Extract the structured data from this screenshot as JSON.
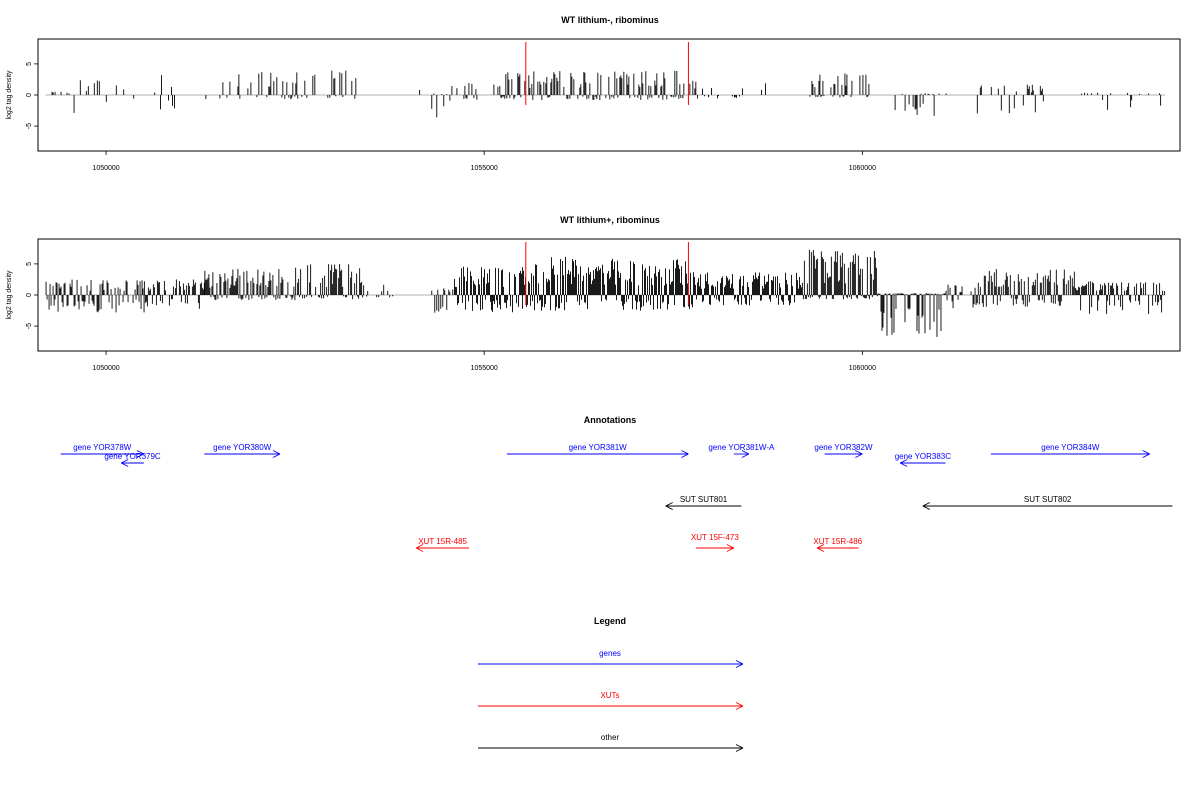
{
  "chart_data": [
    {
      "type": "bar",
      "title": "WT lithium-, ribominus",
      "ylabel": "log2 tag density",
      "xlim": [
        1049100,
        1064200
      ],
      "ylim": [
        -9,
        9
      ],
      "x_ticks": [
        1050000,
        1055000,
        1060000
      ],
      "y_ticks": [
        -5,
        0,
        5
      ],
      "mark_lines": [
        1055550,
        1057700
      ],
      "mark_color": "#ff0000",
      "bar_color": "#000000",
      "grid": false,
      "tracks": [
        {
          "x_range": [
            1049200,
            1049600
          ],
          "density": 0.25,
          "pos_mean": 0.5,
          "neg_mean": -2.4
        },
        {
          "x_range": [
            1049600,
            1050200
          ],
          "density": 0.2,
          "pos_mean": 1.8,
          "neg_mean": -2.2
        },
        {
          "x_range": [
            1050200,
            1050700
          ],
          "density": 0.12,
          "pos_mean": 0.8,
          "neg_mean": -1.5
        },
        {
          "x_range": [
            1050700,
            1050900
          ],
          "density": 0.25,
          "pos_mean": 2.4,
          "neg_mean": -1.8
        },
        {
          "x_range": [
            1051300,
            1052000
          ],
          "density": 0.2,
          "pos_mean": 2.6,
          "neg_mean": -0.5
        },
        {
          "x_range": [
            1052000,
            1053300
          ],
          "density": 0.3,
          "pos_mean": 2.8,
          "neg_mean": -0.5
        },
        {
          "x_range": [
            1054100,
            1054200
          ],
          "density": 0.3,
          "pos_mean": 1.2,
          "neg_mean": 0
        },
        {
          "x_range": [
            1054300,
            1054500
          ],
          "density": 0.25,
          "pos_mean": 0.3,
          "neg_mean": -3.0
        },
        {
          "x_range": [
            1054500,
            1055200
          ],
          "density": 0.3,
          "pos_mean": 1.4,
          "neg_mean": -0.8
        },
        {
          "x_range": [
            1055200,
            1057800
          ],
          "density": 0.55,
          "pos_mean": 2.8,
          "neg_mean": -0.6
        },
        {
          "x_range": [
            1057800,
            1058800
          ],
          "density": 0.25,
          "pos_mean": 1.8,
          "neg_mean": -0.4
        },
        {
          "x_range": [
            1059300,
            1060100
          ],
          "density": 0.45,
          "pos_mean": 2.7,
          "neg_mean": -0.3
        },
        {
          "x_range": [
            1060400,
            1061200
          ],
          "density": 0.35,
          "pos_mean": 0.2,
          "neg_mean": -2.5
        },
        {
          "x_range": [
            1061500,
            1062400
          ],
          "density": 0.3,
          "pos_mean": 1.2,
          "neg_mean": -2.4
        },
        {
          "x_range": [
            1062800,
            1064000
          ],
          "density": 0.14,
          "pos_mean": 0.3,
          "neg_mean": -1.8
        }
      ]
    },
    {
      "type": "bar",
      "title": "WT lithium+, ribominus",
      "ylabel": "log2 tag density",
      "xlim": [
        1049100,
        1064200
      ],
      "ylim": [
        -9,
        9
      ],
      "x_ticks": [
        1050000,
        1055000,
        1060000
      ],
      "y_ticks": [
        -5,
        0,
        5
      ],
      "mark_lines": [
        1055550,
        1057700
      ],
      "mark_color": "#ff0000",
      "bar_color": "#000000",
      "grid": false,
      "tracks": [
        {
          "x_range": [
            1049200,
            1050500
          ],
          "density": 0.75,
          "pos_mean": 1.8,
          "neg_mean": -2.0
        },
        {
          "x_range": [
            1050500,
            1051300
          ],
          "density": 0.75,
          "pos_mean": 1.9,
          "neg_mean": -1.6
        },
        {
          "x_range": [
            1051300,
            1052500
          ],
          "density": 0.8,
          "pos_mean": 3.0,
          "neg_mean": -0.6
        },
        {
          "x_range": [
            1052500,
            1053400
          ],
          "density": 0.7,
          "pos_mean": 3.6,
          "neg_mean": -0.5
        },
        {
          "x_range": [
            1053400,
            1053800
          ],
          "density": 0.3,
          "pos_mean": 1.6,
          "neg_mean": -0.3
        },
        {
          "x_range": [
            1054300,
            1054600
          ],
          "density": 0.4,
          "pos_mean": 0.8,
          "neg_mean": -2.4
        },
        {
          "x_range": [
            1054600,
            1055500
          ],
          "density": 0.9,
          "pos_mean": 3.4,
          "neg_mean": -2.0
        },
        {
          "x_range": [
            1055500,
            1057800
          ],
          "density": 1.0,
          "pos_mean": 4.4,
          "neg_mean": -1.8
        },
        {
          "x_range": [
            1057800,
            1059200
          ],
          "density": 0.9,
          "pos_mean": 2.6,
          "neg_mean": -1.2
        },
        {
          "x_range": [
            1059200,
            1060200
          ],
          "density": 1.0,
          "pos_mean": 5.2,
          "neg_mean": -0.5
        },
        {
          "x_range": [
            1060200,
            1061100
          ],
          "density": 1.0,
          "pos_mean": 0.2,
          "neg_mean": -5.0
        },
        {
          "x_range": [
            1061100,
            1061500
          ],
          "density": 0.5,
          "pos_mean": 1.2,
          "neg_mean": -1.8
        },
        {
          "x_range": [
            1061500,
            1062800
          ],
          "density": 0.85,
          "pos_mean": 3.0,
          "neg_mean": -1.4
        },
        {
          "x_range": [
            1062800,
            1064000
          ],
          "density": 0.75,
          "pos_mean": 1.6,
          "neg_mean": -2.2
        }
      ]
    }
  ],
  "annotations": {
    "title": "Annotations",
    "xlim": [
      1049100,
      1064200
    ],
    "features": [
      {
        "label": "gene YOR378W",
        "category": "gene",
        "strand": "+",
        "x_start": 1049400,
        "x_end": 1050500,
        "row": 1
      },
      {
        "label": "gene YOR379C",
        "category": "gene",
        "strand": "-",
        "x_start": 1050200,
        "x_end": 1050500,
        "row": 2
      },
      {
        "label": "gene YOR380W",
        "category": "gene",
        "strand": "+",
        "x_start": 1051300,
        "x_end": 1052300,
        "row": 1
      },
      {
        "label": "gene YOR381W",
        "category": "gene",
        "strand": "+",
        "x_start": 1055300,
        "x_end": 1057700,
        "row": 1
      },
      {
        "label": "gene YOR381W-A",
        "category": "gene",
        "strand": "+",
        "x_start": 1058300,
        "x_end": 1058500,
        "row": 1
      },
      {
        "label": "gene YOR382W",
        "category": "gene",
        "strand": "+",
        "x_start": 1059500,
        "x_end": 1060000,
        "row": 1
      },
      {
        "label": "gene YOR383C",
        "category": "gene",
        "strand": "-",
        "x_start": 1060500,
        "x_end": 1061100,
        "row": 2
      },
      {
        "label": "gene YOR384W",
        "category": "gene",
        "strand": "+",
        "x_start": 1061700,
        "x_end": 1063800,
        "row": 1
      },
      {
        "label": "SUT SUT801",
        "category": "other",
        "strand": "-",
        "x_start": 1057400,
        "x_end": 1058400,
        "row": 3
      },
      {
        "label": "SUT SUT802",
        "category": "other",
        "strand": "-",
        "x_start": 1060800,
        "x_end": 1064100,
        "row": 3
      },
      {
        "label": "XUT 15R-485",
        "category": "XUT",
        "strand": "-",
        "x_start": 1054100,
        "x_end": 1054800,
        "row": 4
      },
      {
        "label": "XUT 15F-473",
        "category": "XUT",
        "strand": "+",
        "x_start": 1057800,
        "x_end": 1058300,
        "row": 4
      },
      {
        "label": "XUT 15R-486",
        "category": "XUT",
        "strand": "-",
        "x_start": 1059400,
        "x_end": 1059950,
        "row": 4
      }
    ]
  },
  "legend": {
    "title": "Legend",
    "items": [
      {
        "label": "genes",
        "category": "gene"
      },
      {
        "label": "XUTs",
        "category": "XUT"
      },
      {
        "label": "other",
        "category": "other"
      }
    ]
  },
  "colors": {
    "gene": "#0000ff",
    "XUT": "#ff0000",
    "other": "#000000"
  }
}
